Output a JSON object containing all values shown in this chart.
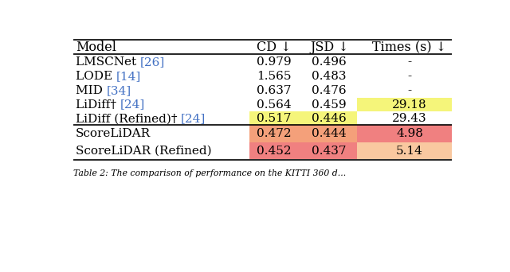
{
  "headers": [
    "Model",
    "CD ↓",
    "JSD ↓",
    "Times (s) ↓"
  ],
  "rows_group1": [
    {
      "model_text": "LMSCNet ",
      "model_ref": "[26]",
      "cd": "0.979",
      "jsd": "0.496",
      "time": "-",
      "cd_bg": null,
      "jsd_bg": null,
      "time_bg": null
    },
    {
      "model_text": "LODE ",
      "model_ref": "[14]",
      "cd": "1.565",
      "jsd": "0.483",
      "time": "-",
      "cd_bg": null,
      "jsd_bg": null,
      "time_bg": null
    },
    {
      "model_text": "MID ",
      "model_ref": "[34]",
      "cd": "0.637",
      "jsd": "0.476",
      "time": "-",
      "cd_bg": null,
      "jsd_bg": null,
      "time_bg": null
    },
    {
      "model_text": "LiDiff† ",
      "model_ref": "[24]",
      "cd": "0.564",
      "jsd": "0.459",
      "time": "29.18",
      "cd_bg": null,
      "jsd_bg": null,
      "time_bg": "#f5f57a"
    },
    {
      "model_text": "LiDiff (Refined)† ",
      "model_ref": "[24]",
      "cd": "0.517",
      "jsd": "0.446",
      "time": "29.43",
      "cd_bg": "#f5f57a",
      "jsd_bg": "#f5f57a",
      "time_bg": null
    }
  ],
  "rows_group2": [
    {
      "model_text": "ScoreLiDAR",
      "model_ref": null,
      "cd": "0.472",
      "jsd": "0.444",
      "time": "4.98",
      "cd_bg": "#f4a07a",
      "jsd_bg": "#f4a07a",
      "time_bg": "#f08080"
    },
    {
      "model_text": "ScoreLiDAR (Refined)",
      "model_ref": null,
      "cd": "0.452",
      "jsd": "0.437",
      "time": "5.14",
      "cd_bg": "#f08080",
      "jsd_bg": "#f08080",
      "time_bg": "#f9c8a0"
    }
  ],
  "ref_color": "#4472c4",
  "bg_color": "#ffffff",
  "caption": "Table 2: The comparison of performance on the KITTI 360 d..."
}
